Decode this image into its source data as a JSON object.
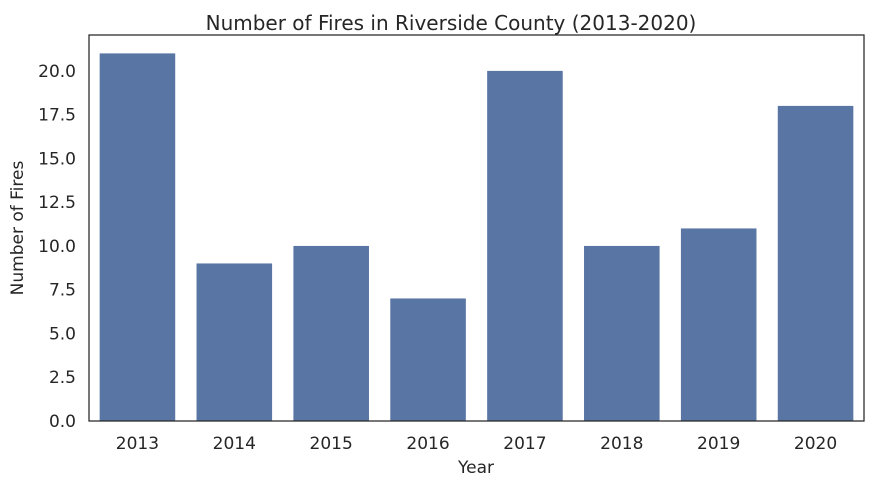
{
  "chart_data": {
    "type": "bar",
    "title": "Number of Fires in Riverside County (2013-2020)",
    "xlabel": "Year",
    "ylabel": "Number of Fires",
    "categories": [
      "2013",
      "2014",
      "2015",
      "2016",
      "2017",
      "2018",
      "2019",
      "2020"
    ],
    "values": [
      21,
      9,
      10,
      7,
      20,
      10,
      11,
      18
    ],
    "ylim": [
      0,
      22.05
    ],
    "yticks": [
      "0.0",
      "2.5",
      "5.0",
      "7.5",
      "10.0",
      "12.5",
      "15.0",
      "17.5",
      "20.0"
    ],
    "bar_color": "#5975a4",
    "grid": false,
    "legend": "none"
  }
}
